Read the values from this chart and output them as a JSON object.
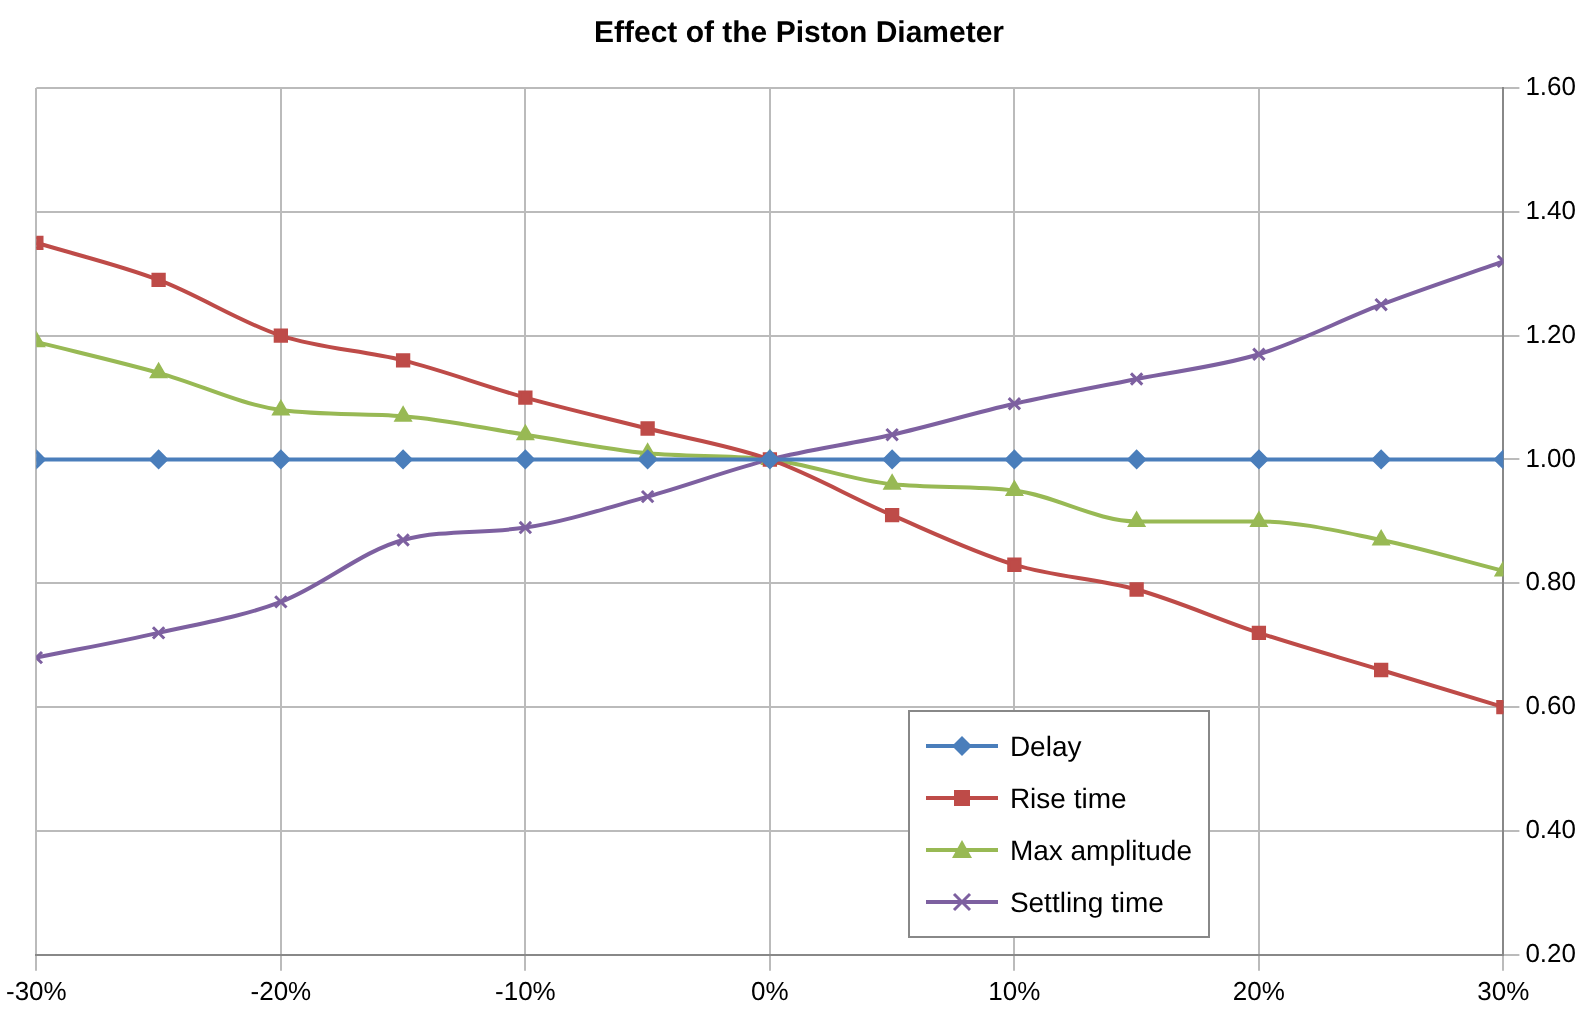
{
  "chart_data": {
    "type": "line",
    "title": "Effect of the Piston Diameter",
    "x": [
      -30,
      -25,
      -20,
      -15,
      -10,
      -5,
      0,
      5,
      10,
      15,
      20,
      25,
      30
    ],
    "xlim": [
      -30,
      30
    ],
    "xticks": [
      {
        "value": -30,
        "label": "-30%"
      },
      {
        "value": -20,
        "label": "-20%"
      },
      {
        "value": -10,
        "label": "-10%"
      },
      {
        "value": 0,
        "label": "0%"
      },
      {
        "value": 10,
        "label": "10%"
      },
      {
        "value": 20,
        "label": "20%"
      },
      {
        "value": 30,
        "label": "30%"
      }
    ],
    "ylim": [
      0.2,
      1.6
    ],
    "yticks": [
      {
        "value": 0.2,
        "label": "0.20"
      },
      {
        "value": 0.4,
        "label": "0.40"
      },
      {
        "value": 0.6,
        "label": "0.60"
      },
      {
        "value": 0.8,
        "label": "0.80"
      },
      {
        "value": 1.0,
        "label": "1.00"
      },
      {
        "value": 1.2,
        "label": "1.20"
      },
      {
        "value": 1.4,
        "label": "1.40"
      },
      {
        "value": 1.6,
        "label": "1.60"
      }
    ],
    "grid": true,
    "legend": "bottom right",
    "series": [
      {
        "name": "Delay",
        "color": "#4a7ebb",
        "marker": "diamond",
        "values": [
          1,
          1,
          1,
          1,
          1,
          1,
          1,
          1,
          1,
          1,
          1,
          1,
          1
        ]
      },
      {
        "name": "Rise time",
        "color": "#be4b48",
        "marker": "square",
        "values": [
          1.35,
          1.29,
          1.2,
          1.16,
          1.1,
          1.05,
          1,
          0.91,
          0.83,
          0.79,
          0.72,
          0.66,
          0.6
        ]
      },
      {
        "name": "Max amplitude",
        "color": "#98b954",
        "marker": "triangle",
        "values": [
          1.19,
          1.14,
          1.08,
          1.07,
          1.04,
          1.01,
          1,
          0.96,
          0.95,
          0.9,
          0.9,
          0.87,
          0.82
        ]
      },
      {
        "name": "Settling time",
        "color": "#7d60a0",
        "marker": "cross",
        "values": [
          0.68,
          0.72,
          0.77,
          0.87,
          0.89,
          0.94,
          1,
          1.04,
          1.09,
          1.13,
          1.17,
          1.25,
          1.32
        ]
      }
    ]
  }
}
